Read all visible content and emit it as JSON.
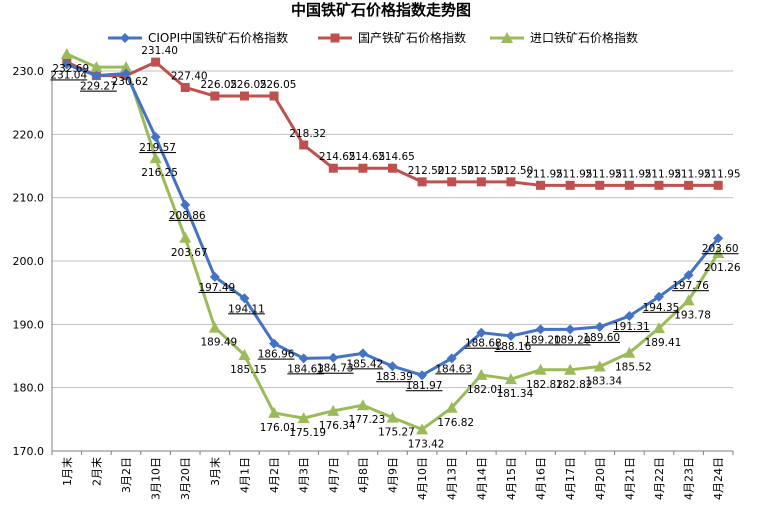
{
  "chart_data": {
    "type": "line",
    "title": "中国铁矿石价格指数走势图",
    "xlabel": "",
    "ylabel": "",
    "ylim": [
      170,
      230
    ],
    "yticks": [
      "170.0",
      "180.0",
      "190.0",
      "200.0",
      "210.0",
      "220.0",
      "230.0"
    ],
    "grid": "horizontal",
    "legend_position": "top",
    "categories": [
      "1月末",
      "2月末",
      "3月2日",
      "3月10日",
      "3月20日",
      "3月末",
      "4月1日",
      "4月2日",
      "4月3日",
      "4月7日",
      "4月8日",
      "4月9日",
      "4月10日",
      "4月13日",
      "4月14日",
      "4月15日",
      "4月16日",
      "4月17日",
      "4月20日",
      "4月21日",
      "4月22日",
      "4月23日",
      "4月24日"
    ],
    "series": [
      {
        "name": "CIOPI中国铁矿石价格指数",
        "color": "#4472c4",
        "marker": "diamond",
        "values": [
          231.04,
          229.27,
          229.6,
          219.57,
          208.86,
          197.49,
          194.11,
          186.96,
          184.63,
          184.73,
          185.42,
          183.39,
          181.97,
          184.63,
          188.68,
          188.16,
          189.2,
          189.2,
          189.6,
          191.31,
          194.35,
          197.76,
          203.6
        ],
        "labels": [
          "231.04",
          "229.27",
          "",
          "219.57",
          "208.86",
          "197.49",
          "194.11",
          "186.96",
          "184.63",
          "184.73",
          "185.42",
          "183.39",
          "181.97",
          "184.63",
          "188.68",
          "188.16",
          "189.20",
          "189.20",
          "189.60",
          "191.31",
          "194.35",
          "197.76",
          "203.60"
        ]
      },
      {
        "name": "国产铁矿石价格指数",
        "color": "#c0504d",
        "marker": "square",
        "values": [
          231.4,
          229.27,
          229.27,
          231.4,
          227.4,
          226.05,
          226.05,
          226.05,
          218.32,
          214.65,
          214.65,
          214.65,
          212.5,
          212.5,
          212.5,
          212.5,
          211.95,
          211.95,
          211.95,
          211.95,
          211.95,
          211.95,
          211.95
        ],
        "labels": [
          "",
          "",
          "",
          "231.40",
          "227.40",
          "226.05",
          "226.05",
          "226.05",
          "218.32",
          "214.65",
          "214.65",
          "214.65",
          "212.50",
          "212.50",
          "212.50",
          "212.50",
          "211.95",
          "211.95",
          "211.95",
          "211.95",
          "211.95",
          "211.95",
          "211.95"
        ]
      },
      {
        "name": "进口铁矿石价格指数",
        "color": "#9bbb59",
        "marker": "triangle",
        "values": [
          232.69,
          230.62,
          230.62,
          216.25,
          203.67,
          189.49,
          185.15,
          176.01,
          175.19,
          176.34,
          177.23,
          175.27,
          173.42,
          176.82,
          182.01,
          181.34,
          182.82,
          182.82,
          183.34,
          185.52,
          189.41,
          193.78,
          201.26
        ],
        "labels": [
          "232.69",
          "",
          "230.62",
          "216.25",
          "203.67",
          "189.49",
          "185.15",
          "176.01",
          "175.19",
          "176.34",
          "177.23",
          "175.27",
          "173.42",
          "176.82",
          "182.01",
          "181.34",
          "182.82",
          "182.82",
          "183.34",
          "185.52",
          "189.41",
          "193.78",
          "201.26"
        ]
      }
    ]
  }
}
